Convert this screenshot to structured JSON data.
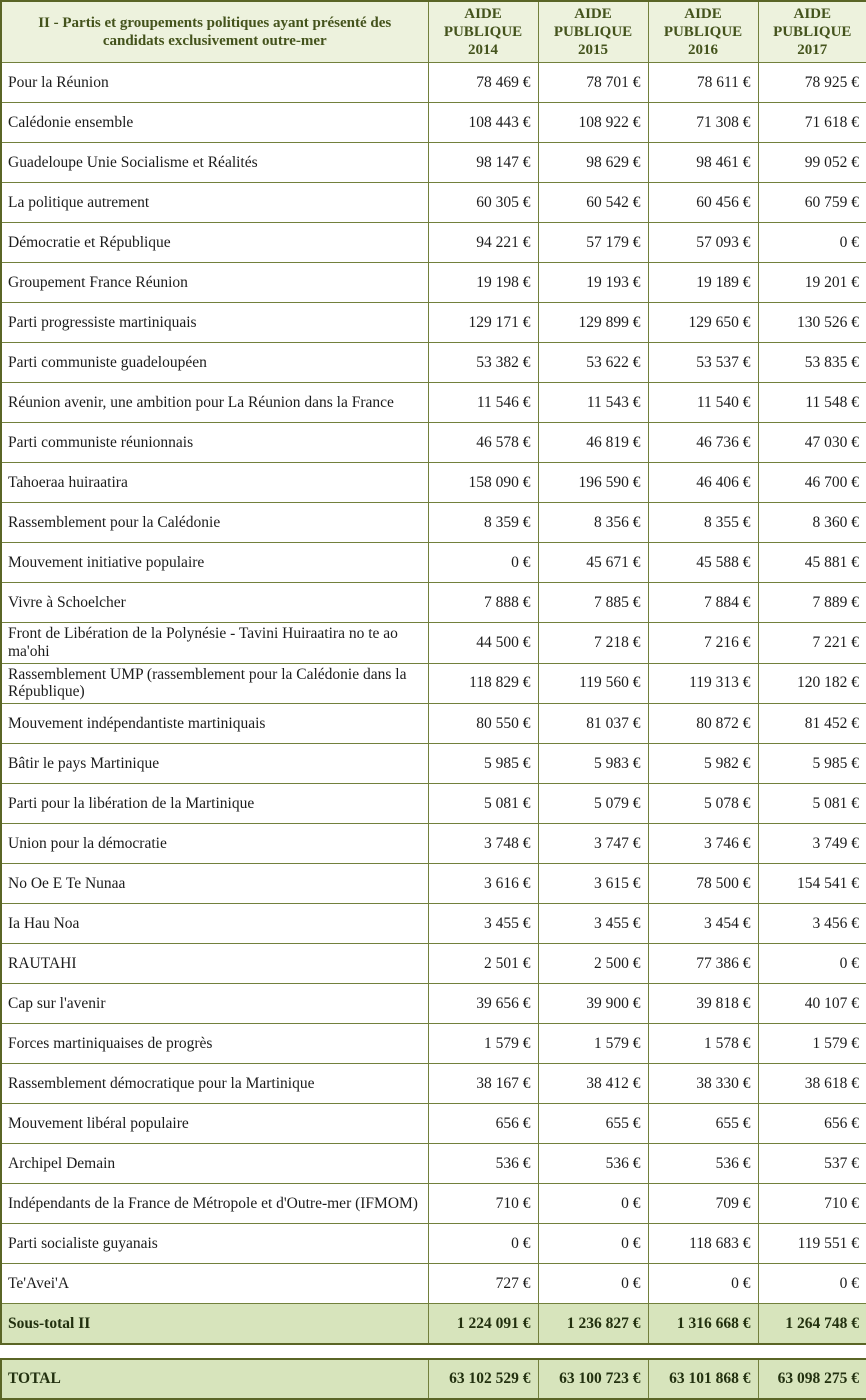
{
  "colors": {
    "border": "#72803c",
    "outer_border": "#5a6526",
    "header_bg": "#edf2dd",
    "header_text": "#44531c",
    "totals_bg": "#d7e4bc",
    "body_text": "#1c1c1c"
  },
  "table": {
    "header": {
      "title": "II - Partis et groupements politiques ayant présenté des candidats exclusivement outre-mer",
      "columns": [
        {
          "top": "AIDE",
          "bottom": "PUBLIQUE 2014"
        },
        {
          "top": "AIDE",
          "bottom": "PUBLIQUE 2015"
        },
        {
          "top": "AIDE",
          "bottom": "PUBLIQUE 2016"
        },
        {
          "top": "AIDE",
          "bottom": "PUBLIQUE 2017"
        }
      ]
    },
    "rows": [
      {
        "name": "Pour la Réunion",
        "values": [
          "78 469 €",
          "78 701 €",
          "78 611 €",
          "78 925 €"
        ]
      },
      {
        "name": "Calédonie ensemble",
        "values": [
          "108 443 €",
          "108 922 €",
          "71 308 €",
          "71 618 €"
        ]
      },
      {
        "name": "Guadeloupe Unie Socialisme et Réalités",
        "values": [
          "98 147 €",
          "98 629 €",
          "98 461 €",
          "99 052 €"
        ]
      },
      {
        "name": "La politique autrement",
        "values": [
          "60 305 €",
          "60 542 €",
          "60 456 €",
          "60 759 €"
        ]
      },
      {
        "name": "Démocratie et République",
        "values": [
          "94 221 €",
          "57 179 €",
          "57 093 €",
          "0 €"
        ]
      },
      {
        "name": "Groupement France Réunion",
        "values": [
          "19 198 €",
          "19 193 €",
          "19 189 €",
          "19 201 €"
        ]
      },
      {
        "name": "Parti progressiste martiniquais",
        "values": [
          "129 171 €",
          "129 899 €",
          "129 650 €",
          "130 526 €"
        ]
      },
      {
        "name": "Parti communiste guadeloupéen",
        "values": [
          "53 382 €",
          "53 622 €",
          "53 537 €",
          "53 835 €"
        ]
      },
      {
        "name": "Réunion avenir, une ambition pour La Réunion dans la France",
        "values": [
          "11 546 €",
          "11 543 €",
          "11 540 €",
          "11 548 €"
        ]
      },
      {
        "name": "Parti communiste réunionnais",
        "values": [
          "46 578 €",
          "46 819 €",
          "46 736 €",
          "47 030 €"
        ]
      },
      {
        "name": "Tahoeraa huiraatira",
        "values": [
          "158 090 €",
          "196 590 €",
          "46 406 €",
          "46 700 €"
        ]
      },
      {
        "name": "Rassemblement pour la Calédonie",
        "values": [
          "8 359 €",
          "8 356 €",
          "8 355 €",
          "8 360 €"
        ]
      },
      {
        "name": "Mouvement initiative populaire",
        "values": [
          "0 €",
          "45 671 €",
          "45 588 €",
          "45 881 €"
        ]
      },
      {
        "name": "Vivre à Schoelcher",
        "values": [
          "7 888 €",
          "7 885 €",
          "7 884 €",
          "7 889 €"
        ]
      },
      {
        "name": "Front de Libération de la Polynésie - Tavini Huiraatira no te ao ma'ohi",
        "values": [
          "44 500 €",
          "7 218 €",
          "7 216 €",
          "7 221 €"
        ]
      },
      {
        "name": "Rassemblement UMP (rassemblement pour la Calédonie dans la République)",
        "values": [
          "118 829 €",
          "119 560 €",
          "119 313 €",
          "120 182 €"
        ]
      },
      {
        "name": "Mouvement indépendantiste martiniquais",
        "values": [
          "80 550 €",
          "81 037 €",
          "80 872 €",
          "81 452 €"
        ]
      },
      {
        "name": "Bâtir le pays Martinique",
        "values": [
          "5 985 €",
          "5 983 €",
          "5 982 €",
          "5 985 €"
        ]
      },
      {
        "name": "Parti pour la libération de la Martinique",
        "values": [
          "5 081 €",
          "5 079 €",
          "5 078 €",
          "5 081 €"
        ]
      },
      {
        "name": "Union pour la démocratie",
        "values": [
          "3 748 €",
          "3 747 €",
          "3 746 €",
          "3 749 €"
        ]
      },
      {
        "name": "No Oe E Te Nunaa",
        "values": [
          "3 616 €",
          "3 615 €",
          "78 500 €",
          "154 541 €"
        ]
      },
      {
        "name": "Ia Hau Noa",
        "values": [
          "3 455 €",
          "3 455 €",
          "3 454 €",
          "3 456 €"
        ]
      },
      {
        "name": "RAUTAHI",
        "values": [
          "2 501 €",
          "2 500 €",
          "77 386 €",
          "0 €"
        ]
      },
      {
        "name": "Cap sur l'avenir",
        "values": [
          "39 656 €",
          "39 900 €",
          "39 818 €",
          "40 107 €"
        ]
      },
      {
        "name": "Forces martiniquaises de progrès",
        "values": [
          "1 579 €",
          "1 579 €",
          "1 578 €",
          "1 579 €"
        ]
      },
      {
        "name": "Rassemblement démocratique pour la Martinique",
        "values": [
          "38 167 €",
          "38 412 €",
          "38 330 €",
          "38 618 €"
        ]
      },
      {
        "name": "Mouvement libéral populaire",
        "values": [
          "656 €",
          "655 €",
          "655 €",
          "656 €"
        ]
      },
      {
        "name": "Archipel Demain",
        "values": [
          "536 €",
          "536 €",
          "536 €",
          "537 €"
        ]
      },
      {
        "name": "Indépendants de la France de Métropole et d'Outre-mer (IFMOM)",
        "values": [
          "710 €",
          "0 €",
          "709 €",
          "710 €"
        ]
      },
      {
        "name": "Parti socialiste guyanais",
        "values": [
          "0 €",
          "0 €",
          "118 683 €",
          "119 551 €"
        ]
      },
      {
        "name": "Te'Avei'A",
        "values": [
          "727 €",
          "0 €",
          "0 €",
          "0 €"
        ]
      }
    ],
    "subtotal": {
      "label": "Sous-total II",
      "values": [
        "1 224 091 €",
        "1 236 827 €",
        "1 316 668 €",
        "1 264 748 €"
      ]
    },
    "total": {
      "label": "TOTAL",
      "values": [
        "63 102 529 €",
        "63 100 723 €",
        "63 101 868 €",
        "63 098 275 €"
      ]
    }
  }
}
